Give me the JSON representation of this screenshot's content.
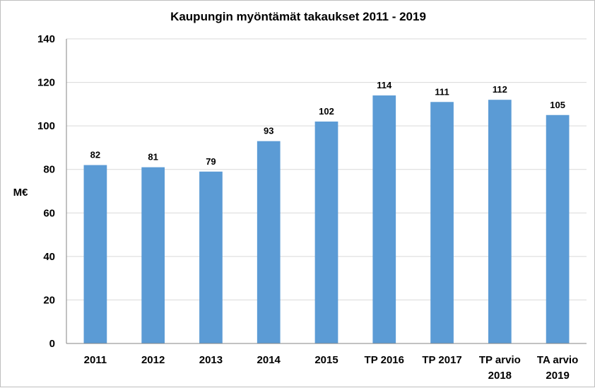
{
  "chart_data": {
    "type": "bar",
    "title": "Kaupungin myöntämät takaukset 2011 - 2019",
    "ylabel": "M€",
    "xlabel": "",
    "ylim": [
      0,
      140
    ],
    "yticks": [
      0,
      20,
      40,
      60,
      80,
      100,
      120,
      140
    ],
    "grid": true,
    "legend": "none",
    "bar_color": "#5b9bd5",
    "categories": [
      [
        "2011"
      ],
      [
        "2012"
      ],
      [
        "2013"
      ],
      [
        "2014"
      ],
      [
        "2015"
      ],
      [
        "TP 2016"
      ],
      [
        "TP 2017"
      ],
      [
        "TP arvio",
        "2018"
      ],
      [
        "TA arvio",
        "2019"
      ]
    ],
    "values": [
      82,
      81,
      79,
      93,
      102,
      114,
      111,
      112,
      105
    ],
    "data_labels": [
      "82",
      "81",
      "79",
      "93",
      "102",
      "114",
      "111",
      "112",
      "105"
    ]
  }
}
